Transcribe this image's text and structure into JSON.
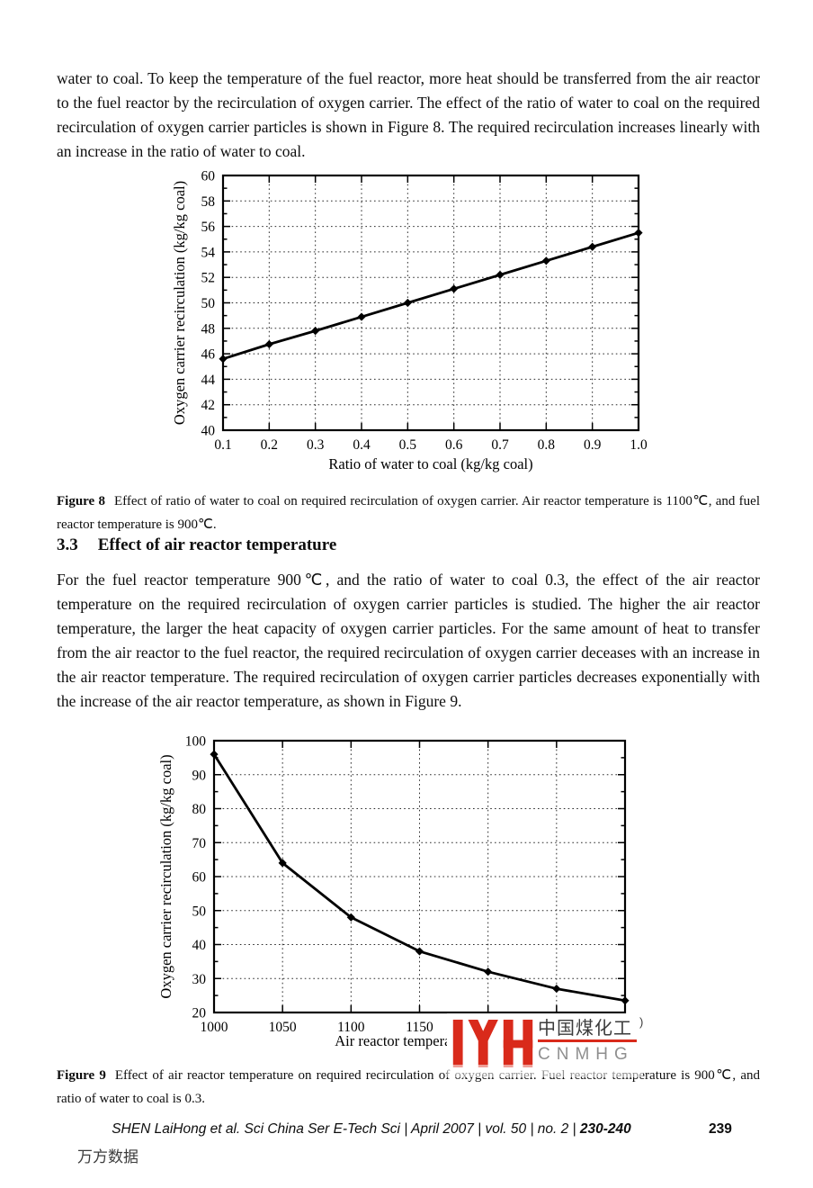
{
  "page": {
    "paragraph_top": "water to coal. To keep the temperature of the fuel reactor, more heat should be transferred from the air reactor to the fuel reactor by the recirculation of oxygen carrier. The effect of the ratio of water to coal on the required recirculation of oxygen carrier particles is shown in Figure 8. The required recirculation increases linearly with an increase in the ratio of water to coal.",
    "figure8": {
      "label": "Figure 8",
      "caption": "Effect of ratio of water to coal on required recirculation of oxygen carrier. Air reactor temperature is 1100℃, and fuel reactor temperature is 900℃."
    },
    "section": {
      "number": "3.3",
      "title": "Effect of air reactor temperature"
    },
    "paragraph_section": "For the fuel reactor temperature 900℃, and the ratio of water to coal 0.3, the effect of the air reactor temperature on the required recirculation of oxygen carrier particles is studied. The higher the air reactor temperature, the larger the heat capacity of oxygen carrier particles. For the same amount of heat to transfer from the air reactor to the fuel reactor, the required recirculation of oxygen carrier deceases with an increase in the air reactor temperature. The required recirculation of oxygen carrier particles decreases exponentially with the increase of the air reactor temperature, as shown in Figure 9.",
    "figure9": {
      "label": "Figure 9",
      "caption": "Effect of air reactor temperature on required recirculation of oxygen carrier. Fuel reactor temperature is 900℃, and ratio of water to coal is 0.3."
    },
    "watermark": {
      "chinese": "中国煤化工",
      "paren": ")",
      "latin": "CNMHG",
      "red": "#d92a1b",
      "gray": "#8f8f8f"
    },
    "footer": {
      "citation": "SHEN LaiHong et al. Sci China Ser E-Tech Sci | April 2007 | vol. 50 | no. 2 | ",
      "pages": "230-240",
      "page_number": "239",
      "wanfang_text": "万方数据"
    }
  },
  "chart_data": [
    {
      "id": "figure8",
      "type": "line",
      "title": "",
      "xlabel": "Ratio of water to coal (kg/kg coal)",
      "ylabel": "Oxygen carrier recirculation (kg/kg coal)",
      "x": [
        0.1,
        0.2,
        0.3,
        0.4,
        0.5,
        0.6,
        0.7,
        0.8,
        0.9,
        1.0
      ],
      "y": [
        45.6,
        46.75,
        47.8,
        48.9,
        50.0,
        51.1,
        52.2,
        53.3,
        54.4,
        55.5
      ],
      "xlim": [
        0.1,
        1.0
      ],
      "ylim": [
        40,
        60
      ],
      "xtick_values": [
        0.1,
        0.2,
        0.3,
        0.4,
        0.5,
        0.6,
        0.7,
        0.8,
        0.9,
        1.0
      ],
      "xtick_labels": [
        "0.1",
        "0.2",
        "0.3",
        "0.4",
        "0.5",
        "0.6",
        "0.7",
        "0.8",
        "0.9",
        "1.0"
      ],
      "ytick_values": [
        40,
        42,
        44,
        46,
        48,
        50,
        52,
        54,
        56,
        58,
        60
      ],
      "ytick_labels": [
        "40",
        "42",
        "44",
        "46",
        "48",
        "50",
        "52",
        "54",
        "56",
        "58",
        "60"
      ],
      "grid": "dotted",
      "marker": "diamond",
      "line_color": "#000000",
      "legend": "none"
    },
    {
      "id": "figure9",
      "type": "line",
      "title": "",
      "xlabel": "Air reactor temperature (℃)",
      "ylabel": "Oxygen carrier recirculation (kg/kg coal)",
      "x": [
        1000,
        1050,
        1100,
        1150,
        1200,
        1250,
        1300
      ],
      "y": [
        96,
        64,
        48,
        38,
        32,
        27,
        23.5
      ],
      "xlim": [
        1000,
        1300
      ],
      "ylim": [
        20,
        100
      ],
      "xtick_values": [
        1000,
        1050,
        1100,
        1150,
        1200,
        1250,
        1300
      ],
      "xtick_labels": [
        "1000",
        "1050",
        "1100",
        "1150",
        "1200",
        "1250",
        "1300"
      ],
      "ytick_values": [
        20,
        30,
        40,
        50,
        60,
        70,
        80,
        90,
        100
      ],
      "ytick_labels": [
        "20",
        "30",
        "40",
        "50",
        "60",
        "70",
        "80",
        "90",
        "100"
      ],
      "grid": "dotted",
      "marker": "diamond",
      "line_color": "#000000",
      "legend": "none"
    }
  ]
}
